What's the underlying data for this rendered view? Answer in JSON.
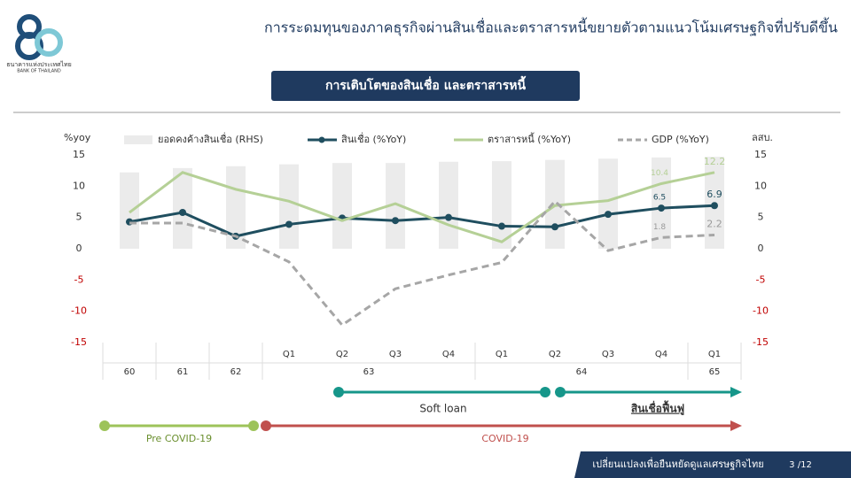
{
  "header": {
    "title": "การระดมทุนของภาคธุรกิจผ่านสินเชื่อและตราสารหนี้ขยายตัวตามแนวโน้มเศรษฐกิจที่ปรับดีขึ้น",
    "logo_name": "ธนาคารแห่งประเทศไทย",
    "logo_name_en": "BANK OF THAILAND",
    "section": "การเติบโตของสินเชื่อ และตราสารหนี้"
  },
  "chart_data": {
    "type": "combo",
    "y_label": "%yoy",
    "y2_label": "ลสบ.",
    "categories": [
      null,
      null,
      null,
      "Q1",
      "Q2",
      "Q3",
      "Q4",
      "Q1",
      "Q2",
      "Q3",
      "Q4",
      "Q1"
    ],
    "groups": [
      {
        "label": "60",
        "span": 1
      },
      {
        "label": "61",
        "span": 1
      },
      {
        "label": "62",
        "span": 1
      },
      {
        "label": "63",
        "span": 4
      },
      {
        "label": "64",
        "span": 4
      },
      {
        "label": "65",
        "span": 1
      }
    ],
    "ylim": [
      -15,
      15
    ],
    "yticks": [
      -15,
      -10,
      -5,
      0,
      5,
      10,
      15
    ],
    "y2lim": [
      -15,
      15
    ],
    "y2ticks": [
      -15,
      -10,
      -5,
      0,
      5,
      10,
      15
    ],
    "negative_tick_color": "#c00000",
    "labeled_indices": [
      10,
      11
    ],
    "series": [
      {
        "name": "ยอดคงค้างสินเชื่อ (RHS)",
        "type": "bar",
        "axis": "y2",
        "color": "#ebebeb",
        "values": [
          12.2,
          12.9,
          13.2,
          13.5,
          13.7,
          13.7,
          13.9,
          14.0,
          14.2,
          14.4,
          14.6,
          14.7
        ]
      },
      {
        "name": "สินเชื่อ (%YoY)",
        "type": "line",
        "color": "#1f4e5f",
        "markers": true,
        "values": [
          4.3,
          5.8,
          2.0,
          3.9,
          4.9,
          4.5,
          5.0,
          3.6,
          3.5,
          5.5,
          6.5,
          6.9
        ]
      },
      {
        "name": "ตราสารหนี้ (%YoY)",
        "type": "line",
        "color": "#b5d096",
        "values": [
          5.8,
          12.2,
          9.5,
          7.6,
          4.5,
          7.2,
          3.8,
          1.1,
          6.9,
          7.7,
          10.4,
          12.2
        ]
      },
      {
        "name": "GDP (%YoY)",
        "type": "line",
        "color": "#a6a6a6",
        "dashed": true,
        "values": [
          4.1,
          4.1,
          2.0,
          -2.1,
          -12.2,
          -6.4,
          -4.2,
          -2.2,
          7.6,
          -0.3,
          1.8,
          2.2
        ]
      }
    ]
  },
  "timeline": {
    "soft_loan": "Soft loan",
    "rehab_loan": "สินเชื่อฟื้นฟู",
    "pre_covid": "Pre COVID-19",
    "covid": "COVID-19"
  },
  "footer": {
    "slogan": "เปลี่ยนแปลงเพื่อยืนหยัดดูแลเศรษฐกิจไทย",
    "page": "3 /12"
  }
}
